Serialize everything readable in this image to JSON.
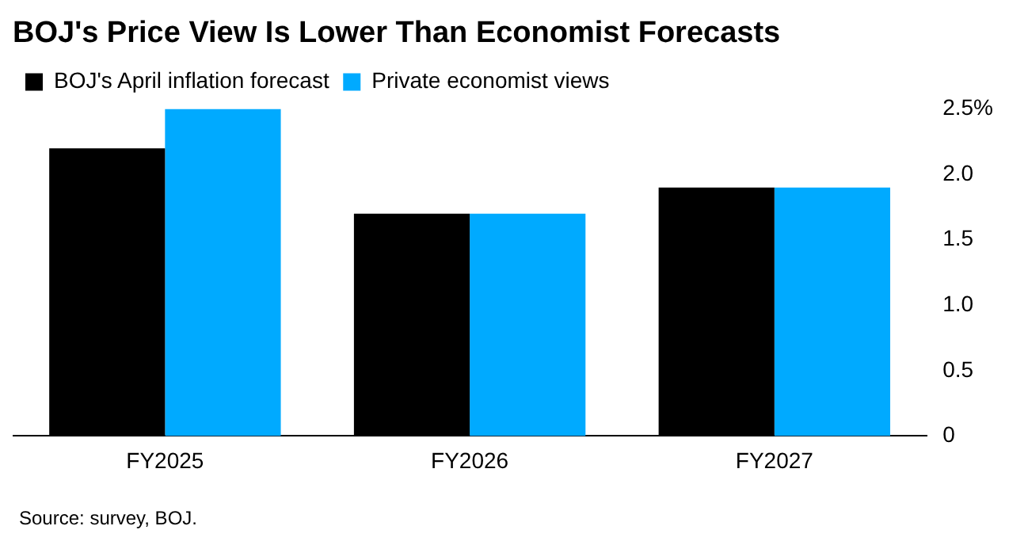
{
  "chart_data": {
    "type": "bar",
    "title": "BOJ's Price View Is Lower Than Economist Forecasts",
    "categories": [
      "FY2025",
      "FY2026",
      "FY2027"
    ],
    "series": [
      {
        "name": "BOJ's April inflation forecast",
        "color": "#000000",
        "values": [
          2.2,
          1.7,
          1.9
        ]
      },
      {
        "name": "Private economist views",
        "color": "#00aaff",
        "values": [
          2.5,
          1.7,
          1.9
        ]
      }
    ],
    "ylim": [
      0,
      2.5
    ],
    "yticks": [
      {
        "value": 0,
        "label": "0"
      },
      {
        "value": 0.5,
        "label": "0.5"
      },
      {
        "value": 1,
        "label": "1.0"
      },
      {
        "value": 1.5,
        "label": "1.5"
      },
      {
        "value": 2,
        "label": "2.0"
      },
      {
        "value": 2.5,
        "label": "2.5%"
      }
    ],
    "grid": false,
    "legend": "top left",
    "annotations": [
      "Source: survey, BOJ."
    ]
  }
}
